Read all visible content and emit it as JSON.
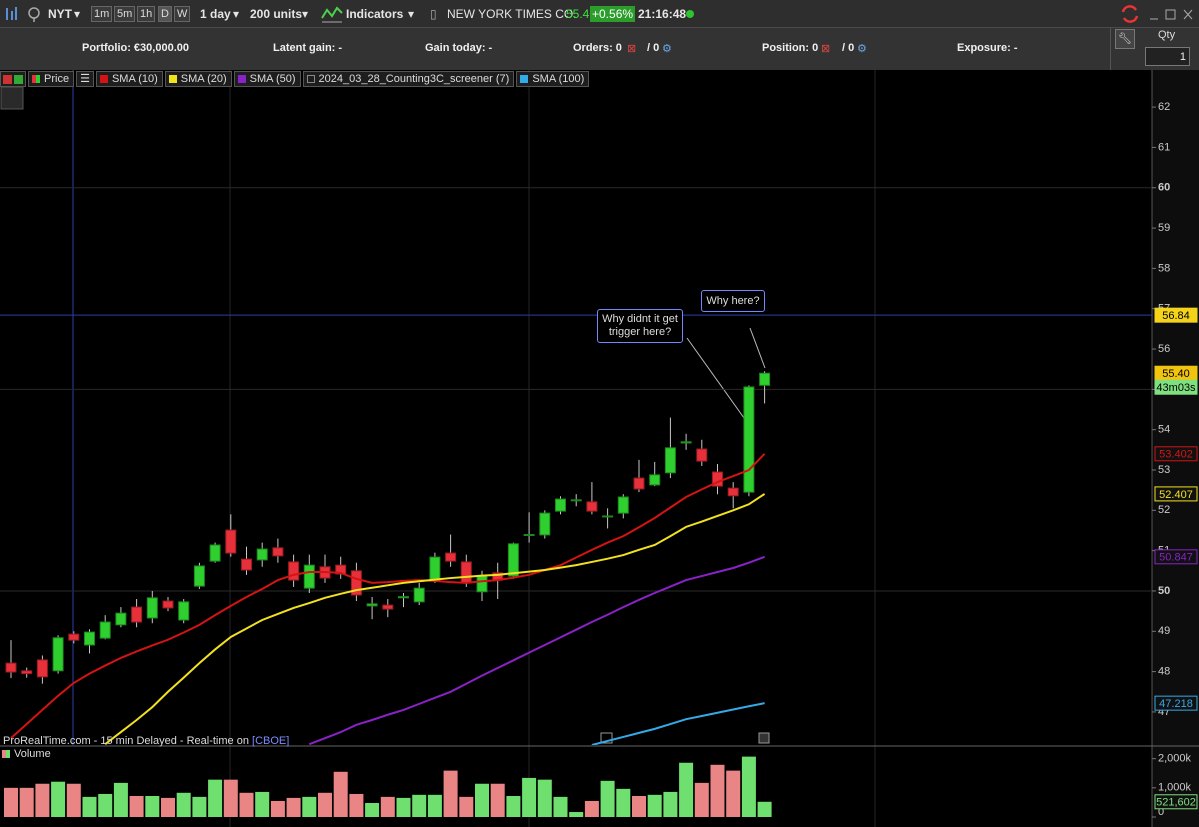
{
  "toolbar": {
    "symbol": "NYT",
    "intervals": [
      "1m",
      "5m",
      "1h",
      "D",
      "W"
    ],
    "period": "1 day",
    "units": "200 units",
    "indicators": "Indicators",
    "instrument": "NEW YORK TIMES CO.",
    "price": "55.40",
    "change": "+0.56%",
    "time": "21:16:48"
  },
  "account_bar": {
    "portfolio": "Portfolio: €30,000.00",
    "latent_gain": "Latent gain: -",
    "gain_today": "Gain today: -",
    "orders": "Orders: 0",
    "orders_total": "/ 0",
    "position": "Position: 0",
    "position_total": "/ 0",
    "exposure": "Exposure: -"
  },
  "side_panel": {
    "qty_label": "Qty",
    "qty_value": "1"
  },
  "chart_data": [
    {
      "type": "candlestick",
      "candles": {
        "name": "Price",
        "open": [
          48.21,
          48.02,
          48.29,
          48.02,
          48.93,
          48.66,
          48.83,
          49.16,
          49.6,
          49.33,
          49.75,
          49.28,
          50.12,
          50.74,
          51.51,
          50.79,
          50.77,
          51.07,
          50.72,
          50.07,
          50.6,
          50.64,
          50.5,
          49.63,
          49.65,
          49.83,
          49.73,
          50.27,
          50.94,
          50.72,
          49.98,
          50.45,
          50.37,
          51.38,
          51.39,
          51.98,
          52.24,
          52.21,
          51.84,
          51.93,
          52.8,
          52.63,
          52.93,
          53.67,
          53.52,
          52.95,
          52.55,
          52.45,
          55.1
        ],
        "high": [
          48.78,
          48.1,
          48.4,
          48.9,
          49.0,
          49.05,
          49.4,
          49.6,
          49.8,
          50.0,
          49.85,
          49.8,
          50.7,
          51.2,
          51.9,
          51.1,
          51.2,
          51.3,
          50.9,
          50.9,
          50.9,
          50.85,
          50.7,
          49.85,
          49.8,
          49.95,
          50.2,
          50.95,
          51.4,
          50.9,
          50.5,
          50.7,
          51.2,
          51.95,
          52.0,
          52.35,
          52.4,
          52.7,
          52.05,
          52.4,
          53.25,
          53.2,
          54.3,
          53.9,
          53.75,
          53.15,
          52.7,
          55.1,
          55.45
        ],
        "low": [
          47.84,
          47.85,
          47.7,
          47.95,
          48.7,
          48.45,
          48.8,
          49.1,
          49.1,
          49.2,
          49.5,
          49.2,
          50.05,
          50.7,
          50.85,
          50.4,
          50.6,
          50.7,
          50.1,
          49.95,
          50.2,
          50.3,
          49.75,
          49.3,
          49.35,
          49.6,
          49.65,
          50.2,
          50.6,
          50.1,
          49.75,
          49.8,
          50.3,
          51.2,
          51.3,
          51.9,
          52.1,
          51.9,
          51.55,
          51.8,
          52.45,
          52.6,
          52.8,
          53.5,
          53.1,
          52.4,
          52.05,
          52.35,
          54.65
        ],
        "close": [
          47.99,
          47.95,
          47.87,
          48.84,
          48.78,
          48.98,
          49.23,
          49.45,
          49.23,
          49.83,
          49.58,
          49.73,
          50.62,
          51.14,
          50.94,
          50.52,
          51.04,
          50.87,
          50.27,
          50.64,
          50.32,
          50.42,
          49.9,
          49.68,
          49.55,
          49.86,
          50.07,
          50.84,
          50.74,
          50.2,
          50.37,
          50.27,
          51.17,
          51.4,
          51.93,
          52.28,
          52.26,
          51.98,
          51.86,
          52.33,
          52.53,
          52.88,
          53.55,
          53.7,
          53.22,
          52.6,
          52.36,
          55.06,
          55.4
        ]
      },
      "up_color": "#2fcf2f",
      "down_color": "#e8303a",
      "series": [
        {
          "name": "SMA (10)",
          "color": "#d41414",
          "values": [
            46.35,
            46.7,
            47.05,
            47.4,
            47.72,
            47.95,
            48.15,
            48.34,
            48.5,
            48.65,
            48.79,
            48.97,
            49.16,
            49.4,
            49.63,
            49.85,
            50.05,
            50.27,
            50.4,
            50.47,
            50.47,
            50.45,
            50.3,
            50.2,
            50.22,
            50.25,
            50.27,
            50.25,
            50.22,
            50.2,
            50.24,
            50.27,
            50.33,
            50.4,
            50.52,
            50.64,
            50.83,
            51.02,
            51.2,
            51.36,
            51.58,
            51.81,
            52.07,
            52.33,
            52.52,
            52.7,
            52.85,
            53.0,
            53.402
          ]
        },
        {
          "name": "SMA (20)",
          "color": "#f2e21e",
          "values": [
            null,
            null,
            null,
            null,
            null,
            null,
            46.2,
            46.5,
            46.8,
            47.12,
            47.5,
            47.85,
            48.21,
            48.55,
            48.86,
            49.07,
            49.28,
            49.43,
            49.58,
            49.7,
            49.83,
            49.93,
            50.02,
            50.08,
            50.14,
            50.2,
            50.24,
            50.28,
            50.32,
            50.35,
            50.38,
            50.4,
            50.44,
            50.48,
            50.52,
            50.58,
            50.64,
            50.72,
            50.8,
            50.89,
            51.02,
            51.14,
            51.36,
            51.59,
            51.72,
            51.86,
            52.0,
            52.15,
            52.407
          ]
        },
        {
          "name": "SMA (50)",
          "color": "#8a22c8",
          "values": [
            null,
            null,
            null,
            null,
            null,
            null,
            null,
            null,
            null,
            null,
            null,
            null,
            null,
            null,
            null,
            null,
            null,
            null,
            null,
            46.2,
            46.35,
            46.5,
            46.68,
            46.8,
            46.93,
            47.05,
            47.2,
            47.35,
            47.5,
            47.7,
            47.9,
            48.09,
            48.28,
            48.47,
            48.66,
            48.85,
            49.04,
            49.23,
            49.41,
            49.6,
            49.78,
            49.95,
            50.11,
            50.27,
            50.37,
            50.47,
            50.57,
            50.7,
            50.847
          ]
        },
        {
          "name": "SMA (100)",
          "color": "#35aae8",
          "values": [
            null,
            null,
            null,
            null,
            null,
            null,
            null,
            null,
            null,
            null,
            null,
            null,
            null,
            null,
            null,
            null,
            null,
            null,
            null,
            null,
            null,
            null,
            null,
            null,
            null,
            null,
            null,
            null,
            null,
            null,
            null,
            null,
            null,
            null,
            null,
            null,
            null,
            46.18,
            46.28,
            46.38,
            46.48,
            46.58,
            46.7,
            46.82,
            46.9,
            46.98,
            47.06,
            47.14,
            47.218
          ]
        }
      ],
      "screener": "2024_03_28_Counting3C_screener (7)",
      "ylim": [
        46.18,
        62.92
      ],
      "yticks": [
        47,
        48,
        49,
        50,
        51,
        52,
        53,
        54,
        55,
        56,
        57,
        58,
        59,
        60,
        61,
        62
      ],
      "crosshair": 56.84,
      "last_price_label": "55.40",
      "countdown": "43m03s",
      "annotations": [
        {
          "text": "Why didnt it get trigger here?"
        },
        {
          "text": "Why here?"
        }
      ]
    },
    {
      "type": "bar",
      "title": "Volume",
      "values": [
        1000000,
        1000000,
        1140000,
        1210000,
        1140000,
        690000,
        790000,
        1170000,
        720000,
        720000,
        655000,
        830000,
        690000,
        1280000,
        1280000,
        830000,
        860000,
        550000,
        655000,
        690000,
        830000,
        1550000,
        790000,
        480000,
        690000,
        655000,
        760000,
        760000,
        1590000,
        690000,
        1140000,
        1140000,
        720000,
        1340000,
        1280000,
        690000,
        170000,
        550000,
        1240000,
        965000,
        720000,
        760000,
        860000,
        1860000,
        1170000,
        1790000,
        1590000,
        2070000,
        521602
      ],
      "value_labels": [
        null,
        null,
        null,
        null,
        null,
        null,
        null,
        null,
        null,
        null,
        null,
        null,
        null,
        null,
        null,
        null,
        null,
        null,
        null,
        null,
        null,
        null,
        null,
        null,
        null,
        null,
        null,
        null,
        null,
        null,
        null,
        null,
        null,
        null,
        null,
        null,
        null,
        null,
        null,
        null,
        null,
        null,
        null,
        null,
        null,
        null,
        null,
        null,
        "521,602"
      ],
      "up_color": "#6fe06f",
      "down_color": "#e98585",
      "ylim": [
        0,
        2400000
      ],
      "yticks": [
        0,
        {
          "value": 1000000,
          "label": "1,000k"
        },
        {
          "value": 2000000,
          "label": "2,000k"
        }
      ]
    }
  ],
  "footer": {
    "source": "ProRealTime.com - 15 min Delayed - Real-time on",
    "exchange": "[CBOE]"
  }
}
